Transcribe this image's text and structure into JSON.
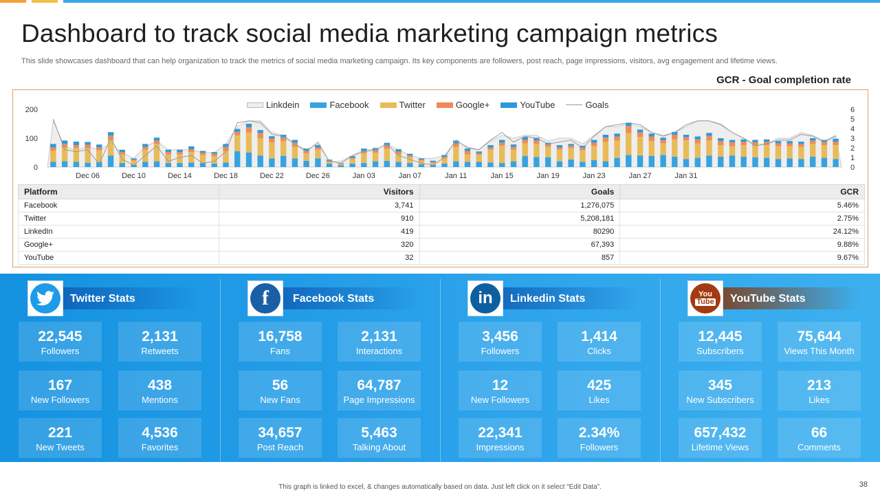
{
  "title": "Dashboard to track social media marketing campaign metrics",
  "subtitle": "This slide showcases dashboard that can help organization to track the metrics of social media marketing campaign. Its key components are followers, post reach, page impressions, visitors, avg engagement and lifetime views.",
  "gcr_label": "GCR - Goal completion rate",
  "colors": {
    "linkedin_area": "#eeeeee",
    "facebook": "#36a3e0",
    "twitter": "#e8bb5a",
    "googleplus": "#ef8b58",
    "youtube": "#2d9ad8",
    "goals_line": "#9a9a9a",
    "accent_orange": "#f2a13a",
    "accent_blue": "#3aa8e8"
  },
  "chart_data": {
    "type": "bar",
    "stacked": true,
    "x_tick_labels": [
      "Dec 06",
      "Dec 10",
      "Dec 14",
      "Dec 18",
      "Dec 22",
      "Dec 26",
      "Jan 03",
      "Jan 07",
      "Jan 11",
      "Jan 15",
      "Jan 19",
      "Jan 23",
      "Jan 27",
      "Jan 31"
    ],
    "y_left": {
      "ticks": [
        "0",
        "100",
        "200"
      ],
      "range": [
        0,
        200
      ]
    },
    "y_right": {
      "ticks": [
        "0",
        "1",
        "2",
        "3",
        "4",
        "5",
        "6"
      ],
      "range": [
        0,
        6
      ]
    },
    "legend": [
      "Linkdein",
      "Facebook",
      "Twitter",
      "Google+",
      "YouTube",
      "Goals"
    ],
    "legend_position": "top",
    "series": [
      {
        "name": "Facebook",
        "values": [
          18,
          20,
          18,
          15,
          18,
          40,
          14,
          8,
          18,
          20,
          14,
          14,
          16,
          14,
          12,
          16,
          55,
          50,
          40,
          30,
          38,
          30,
          22,
          30,
          12,
          6,
          12,
          14,
          20,
          22,
          18,
          14,
          10,
          8,
          12,
          20,
          18,
          18,
          16,
          14,
          20,
          38,
          35,
          34,
          20,
          26,
          18,
          24,
          20,
          32,
          42,
          40,
          38,
          42,
          36,
          28,
          32,
          40,
          36,
          40,
          36,
          34,
          32,
          28,
          30,
          28,
          36,
          32,
          28
        ],
        "twitter": null
      },
      {
        "name": "Twitter",
        "values": [
          38,
          48,
          48,
          50,
          40,
          55,
          30,
          14,
          42,
          60,
          30,
          30,
          36,
          28,
          26,
          40,
          55,
          70,
          60,
          55,
          52,
          40,
          26,
          30,
          6,
          4,
          16,
          34,
          30,
          42,
          26,
          20,
          12,
          6,
          18,
          50,
          26,
          24,
          44,
          60,
          40,
          44,
          45,
          36,
          40,
          40,
          40,
          48,
          68,
          60,
          76,
          64,
          52,
          40,
          60,
          64,
          50,
          52,
          40,
          32,
          40,
          40,
          44,
          44,
          42,
          42,
          44,
          44,
          48
        ],
        "twitter": null
      },
      {
        "name": "Google+",
        "values": [
          12,
          12,
          10,
          12,
          10,
          14,
          8,
          4,
          10,
          12,
          8,
          8,
          10,
          8,
          8,
          14,
          12,
          18,
          18,
          14,
          12,
          14,
          8,
          8,
          4,
          2,
          4,
          8,
          8,
          10,
          10,
          6,
          4,
          4,
          6,
          12,
          12,
          6,
          8,
          10,
          10,
          12,
          12,
          8,
          8,
          8,
          8,
          12,
          14,
          14,
          24,
          16,
          16,
          12,
          16,
          12,
          14,
          16,
          14,
          14,
          12,
          12,
          12,
          10,
          10,
          10,
          12,
          10,
          12
        ],
        "twitter": null
      },
      {
        "name": "YouTube",
        "values": [
          12,
          12,
          12,
          10,
          10,
          12,
          8,
          4,
          10,
          10,
          8,
          8,
          10,
          6,
          6,
          10,
          10,
          12,
          10,
          8,
          10,
          10,
          8,
          8,
          4,
          2,
          6,
          8,
          8,
          10,
          8,
          6,
          4,
          4,
          6,
          10,
          8,
          6,
          8,
          10,
          8,
          10,
          10,
          6,
          8,
          6,
          8,
          10,
          10,
          10,
          12,
          10,
          10,
          8,
          10,
          8,
          10,
          10,
          10,
          8,
          8,
          8,
          8,
          8,
          8,
          8,
          8,
          8,
          10
        ],
        "twitter": null
      },
      {
        "name": "Linkdein",
        "values": [
          160,
          70,
          60,
          70,
          60,
          80,
          50,
          30,
          70,
          90,
          60,
          60,
          60,
          50,
          50,
          80,
          140,
          160,
          160,
          120,
          110,
          80,
          60,
          80,
          20,
          20,
          40,
          60,
          60,
          80,
          60,
          40,
          30,
          30,
          40,
          90,
          70,
          60,
          90,
          110,
          100,
          110,
          110,
          90,
          100,
          100,
          80,
          110,
          140,
          140,
          150,
          140,
          120,
          110,
          120,
          140,
          160,
          160,
          150,
          120,
          100,
          80,
          80,
          100,
          100,
          120,
          110,
          90,
          110
        ]
      },
      {
        "name": "Goals",
        "values": [
          5.0,
          1.8,
          1.6,
          1.8,
          0.3,
          3.0,
          0.8,
          0.2,
          1.2,
          2.2,
          0.6,
          1.0,
          1.2,
          0.4,
          0.6,
          1.6,
          4.6,
          4.8,
          4.6,
          3.4,
          3.2,
          2.4,
          1.6,
          2.6,
          0.6,
          0.4,
          1.2,
          1.6,
          1.8,
          2.4,
          1.2,
          0.8,
          0.4,
          0.2,
          1.0,
          2.8,
          2.0,
          1.8,
          2.8,
          3.6,
          2.6,
          3.2,
          3.0,
          2.4,
          2.6,
          2.8,
          2.0,
          3.2,
          4.2,
          4.4,
          4.6,
          4.4,
          3.6,
          3.2,
          3.6,
          4.4,
          4.8,
          4.8,
          4.4,
          3.6,
          3.0,
          2.2,
          2.4,
          2.8,
          2.8,
          3.4,
          3.2,
          2.6,
          3.2
        ]
      }
    ]
  },
  "table": {
    "headers": [
      "Platform",
      "Visitors",
      "Goals",
      "GCR"
    ],
    "rows": [
      [
        "Facebook",
        "3,741",
        "1,276,075",
        "5.46%"
      ],
      [
        "Twitter",
        "910",
        "5,208,181",
        "2.75%"
      ],
      [
        "LinkedIn",
        "419",
        "80290",
        "24.12%"
      ],
      [
        "Google+",
        "320",
        "67,393",
        "9.88%"
      ],
      [
        "YouTube",
        "32",
        "857",
        "9.67%"
      ]
    ]
  },
  "stats": [
    {
      "title": "Twitter Stats",
      "icon": "twitter-bird-icon",
      "cards": [
        {
          "value": "22,545",
          "label": "Followers"
        },
        {
          "value": "2,131",
          "label": "Retweets"
        },
        {
          "value": "167",
          "label": "New Followers"
        },
        {
          "value": "438",
          "label": "Mentions"
        },
        {
          "value": "221",
          "label": "New Tweets"
        },
        {
          "value": "4,536",
          "label": "Favorites"
        }
      ]
    },
    {
      "title": "Facebook Stats",
      "icon": "facebook-f-icon",
      "cards": [
        {
          "value": "16,758",
          "label": "Fans"
        },
        {
          "value": "2,131",
          "label": "Interactions"
        },
        {
          "value": "56",
          "label": "New Fans"
        },
        {
          "value": "64,787",
          "label": "Page Impressions"
        },
        {
          "value": "34,657",
          "label": "Post Reach"
        },
        {
          "value": "5,463",
          "label": "Talking About"
        }
      ]
    },
    {
      "title": "Linkedin Stats",
      "icon": "linkedin-in-icon",
      "cards": [
        {
          "value": "3,456",
          "label": "Followers"
        },
        {
          "value": "1,414",
          "label": "Clicks"
        },
        {
          "value": "12",
          "label": "New Followers"
        },
        {
          "value": "425",
          "label": "Likes"
        },
        {
          "value": "22,341",
          "label": "Impressions"
        },
        {
          "value": "2.34%",
          "label": "Followers"
        }
      ]
    },
    {
      "title": "YouTube Stats",
      "icon": "youtube-icon",
      "cards": [
        {
          "value": "12,445",
          "label": "Subscribers"
        },
        {
          "value": "75,644",
          "label": "Views This Month"
        },
        {
          "value": "345",
          "label": "New Subscribers"
        },
        {
          "value": "213",
          "label": "Likes"
        },
        {
          "value": "657,432",
          "label": "Lifetime Views"
        },
        {
          "value": "66",
          "label": "Comments"
        }
      ]
    }
  ],
  "logo_text": {
    "facebook": "f",
    "linkedin": "in",
    "youtube_top": "You",
    "youtube_bottom": "Tube"
  },
  "footnote": "This graph is linked to excel, & changes automatically based on data. Just left click on it select “Edit Data”.",
  "page_number": "38"
}
